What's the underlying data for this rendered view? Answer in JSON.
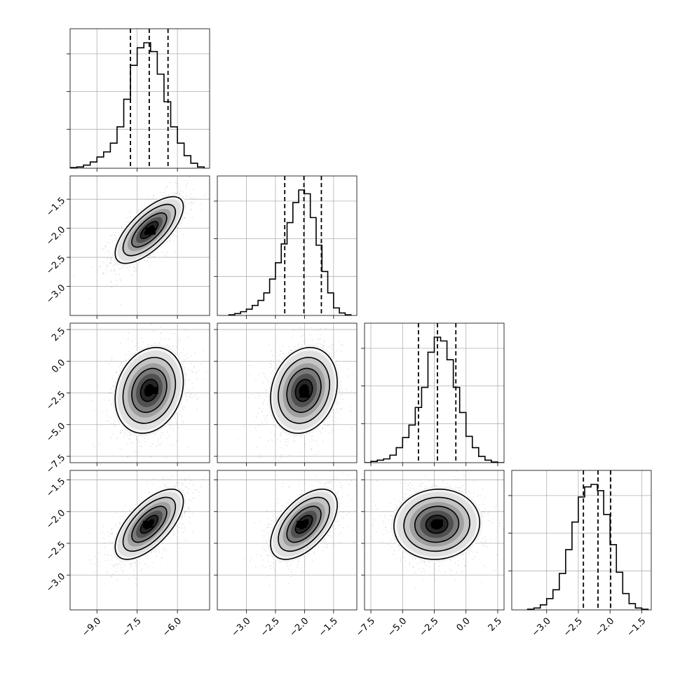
{
  "chart_data": {
    "type": "corner",
    "grid": true,
    "legend": "none",
    "n_params": 4,
    "colors": {
      "line": "#000000",
      "grid": "#b0b0b0",
      "scatter": "#9a9a9a",
      "density_low": "#f2f2f2",
      "density_high": "#000000"
    },
    "params": [
      {
        "index": 0,
        "range": [
          -10.0,
          -4.8
        ],
        "x_ticks": [
          -9.0,
          -7.5,
          -6.0
        ],
        "x_tick_labels": [
          "−9.0",
          "−7.5",
          "−6.0"
        ],
        "y_ticks": [],
        "y_tick_labels": [],
        "hist_type": "step",
        "hist_bin_edges": [
          -10.0,
          -9.75,
          -9.5,
          -9.25,
          -9.0,
          -8.75,
          -8.5,
          -8.25,
          -8.0,
          -7.75,
          -7.5,
          -7.25,
          -7.0,
          -6.75,
          -6.5,
          -6.25,
          -6.0,
          -5.75,
          -5.5,
          -5.25,
          -5.0
        ],
        "hist_counts": [
          0.005,
          0.01,
          0.025,
          0.05,
          0.09,
          0.13,
          0.2,
          0.33,
          0.55,
          0.82,
          0.96,
          1.0,
          0.93,
          0.75,
          0.53,
          0.33,
          0.2,
          0.1,
          0.04,
          0.01
        ],
        "quantiles": [
          -7.75,
          -7.05,
          -6.35
        ]
      },
      {
        "index": 1,
        "range": [
          -3.5,
          -1.1
        ],
        "x_ticks": [
          -3.0,
          -2.5,
          -2.0,
          -1.5
        ],
        "x_tick_labels": [
          "−3.0",
          "−2.5",
          "−2.0",
          "−1.5"
        ],
        "y_ticks": [
          -3.0,
          -2.5,
          -2.0,
          -1.5
        ],
        "y_tick_labels": [
          "−3.0",
          "−2.5",
          "−2.0",
          "−1.5"
        ],
        "hist_type": "step",
        "hist_bin_edges": [
          -3.3,
          -3.2,
          -3.1,
          -3.0,
          -2.9,
          -2.8,
          -2.7,
          -2.6,
          -2.5,
          -2.4,
          -2.3,
          -2.2,
          -2.1,
          -2.0,
          -1.9,
          -1.8,
          -1.7,
          -1.6,
          -1.5,
          -1.4,
          -1.3,
          -1.2
        ],
        "hist_counts": [
          0.005,
          0.015,
          0.03,
          0.05,
          0.08,
          0.12,
          0.18,
          0.29,
          0.42,
          0.57,
          0.74,
          0.9,
          1.0,
          0.97,
          0.78,
          0.56,
          0.35,
          0.18,
          0.06,
          0.02,
          0.005
        ],
        "quantiles": [
          -2.34,
          -2.01,
          -1.71
        ]
      },
      {
        "index": 2,
        "range": [
          -8.0,
          3.0
        ],
        "x_ticks": [
          -7.5,
          -5.0,
          -2.5,
          0.0,
          2.5
        ],
        "x_tick_labels": [
          "−7.5",
          "−5.0",
          "−2.5",
          "0.0",
          "2.5"
        ],
        "y_ticks": [
          -7.5,
          -5.0,
          -2.5,
          0.0,
          2.5
        ],
        "y_tick_labels": [
          "−7.5",
          "−5.0",
          "−2.5",
          "0.0",
          "2.5"
        ],
        "hist_type": "step",
        "hist_bin_edges": [
          -8.0,
          -7.5,
          -7.0,
          -6.5,
          -6.0,
          -5.5,
          -5.0,
          -4.5,
          -4.0,
          -3.5,
          -3.0,
          -2.5,
          -2.0,
          -1.5,
          -1.0,
          -0.5,
          0.0,
          0.5,
          1.0,
          1.5,
          2.0,
          2.5,
          3.0
        ],
        "hist_counts": [
          0.0,
          0.01,
          0.02,
          0.03,
          0.06,
          0.12,
          0.2,
          0.3,
          0.44,
          0.6,
          0.88,
          1.0,
          0.97,
          0.82,
          0.6,
          0.4,
          0.21,
          0.12,
          0.05,
          0.02,
          0.005,
          0.0
        ],
        "quantiles": [
          -3.75,
          -2.25,
          -0.8
        ]
      },
      {
        "index": 3,
        "range": [
          -3.55,
          -1.35
        ],
        "x_ticks": [
          -3.0,
          -2.5,
          -2.0,
          -1.5
        ],
        "x_tick_labels": [
          "−3.0",
          "−2.5",
          "−2.0",
          "−1.5"
        ],
        "y_ticks": [
          -3.0,
          -2.5,
          -2.0,
          -1.5
        ],
        "y_tick_labels": [
          "−3.0",
          "−2.5",
          "−2.0",
          "−1.5"
        ],
        "hist_type": "step",
        "hist_bin_edges": [
          -3.3,
          -3.2,
          -3.1,
          -3.0,
          -2.9,
          -2.8,
          -2.7,
          -2.6,
          -2.5,
          -2.4,
          -2.3,
          -2.2,
          -2.1,
          -2.0,
          -1.9,
          -1.8,
          -1.7,
          -1.6,
          -1.5,
          -1.4
        ],
        "hist_counts": [
          0.005,
          0.015,
          0.04,
          0.09,
          0.16,
          0.29,
          0.48,
          0.7,
          0.9,
          0.98,
          1.0,
          0.95,
          0.76,
          0.52,
          0.3,
          0.13,
          0.05,
          0.015,
          0.005
        ],
        "quantiles": [
          -2.42,
          -2.19,
          -1.99
        ]
      }
    ],
    "pairs": [
      {
        "x": 0,
        "y": 1,
        "mean": [
          -7.05,
          -2.03
        ],
        "sd": [
          0.62,
          0.28
        ],
        "corr": 0.7,
        "peak": [
          -7.0,
          -2.05
        ]
      },
      {
        "x": 0,
        "y": 2,
        "mean": [
          -7.05,
          -2.3
        ],
        "sd": [
          0.62,
          1.65
        ],
        "corr": 0.2,
        "peak": [
          -6.9,
          -2.3
        ]
      },
      {
        "x": 1,
        "y": 2,
        "mean": [
          -2.01,
          -2.3
        ],
        "sd": [
          0.28,
          1.65
        ],
        "corr": 0.18,
        "peak": [
          -2.0,
          -2.6
        ]
      },
      {
        "x": 0,
        "y": 3,
        "mean": [
          -7.05,
          -2.2
        ],
        "sd": [
          0.62,
          0.27
        ],
        "corr": 0.65,
        "peak": [
          -7.1,
          -2.2
        ]
      },
      {
        "x": 1,
        "y": 3,
        "mean": [
          -2.01,
          -2.2
        ],
        "sd": [
          0.28,
          0.27
        ],
        "corr": 0.55,
        "peak": [
          -2.05,
          -2.2
        ]
      },
      {
        "x": 2,
        "y": 3,
        "mean": [
          -2.3,
          -2.2
        ],
        "sd": [
          1.65,
          0.27
        ],
        "corr": 0.05,
        "peak": [
          -2.2,
          -2.18
        ]
      }
    ],
    "contour_sigma_levels": [
      0.5,
      1.0,
      1.5,
      2.0
    ]
  }
}
